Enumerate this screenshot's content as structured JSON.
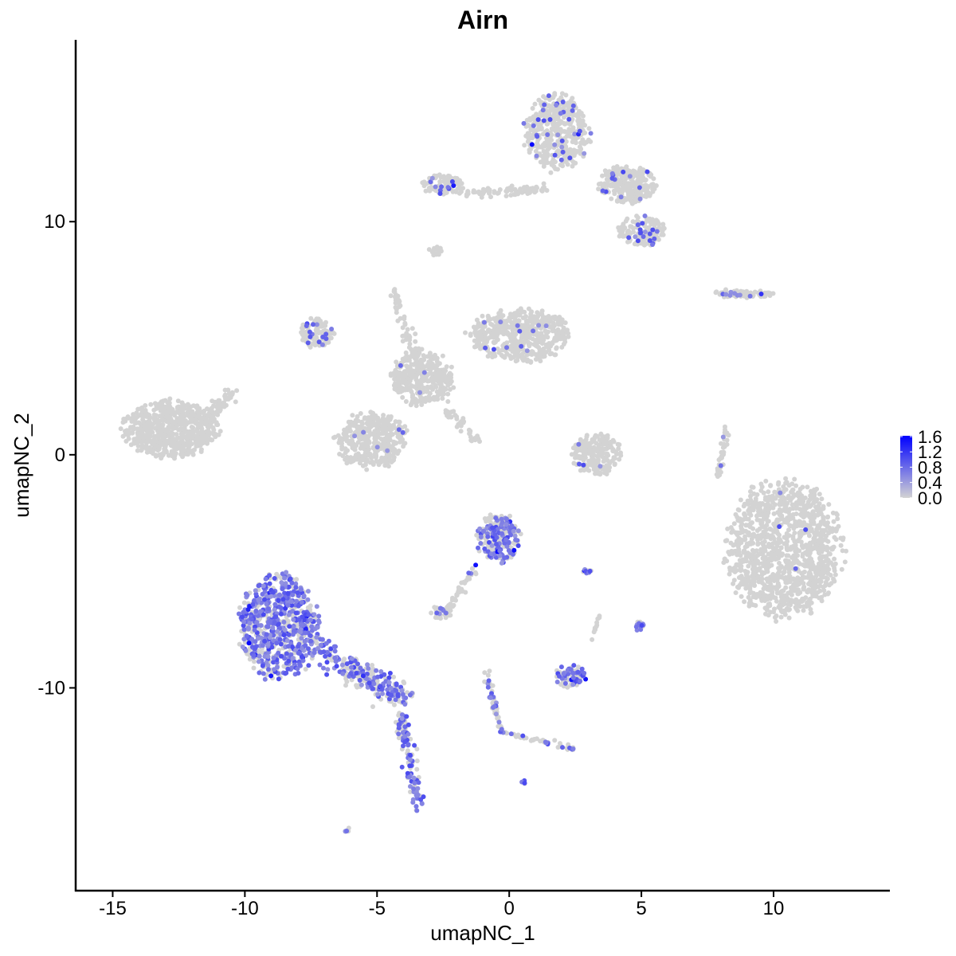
{
  "chart_data": {
    "type": "scatter",
    "title": "Airn",
    "xlabel": "umapNC_1",
    "ylabel": "umapNC_2",
    "xlim": [
      -16.4,
      14.4
    ],
    "ylim": [
      -18.7,
      17.8
    ],
    "xticks": [
      -15,
      -10,
      -5,
      0,
      5,
      10
    ],
    "yticks": [
      -10,
      0,
      10
    ],
    "grid": false,
    "legend": {
      "placement": "right",
      "type": "colorbar",
      "range": [
        0.0,
        1.6
      ],
      "ticks": [
        "1.6",
        "1.2",
        "0.8",
        "0.4",
        "0.0"
      ],
      "low_color": "#d3d3d3",
      "high_color": "#0000ff"
    },
    "clusters": [
      {
        "shape": "blob",
        "center": [
          -12.8,
          1.1
        ],
        "spread": [
          1.95,
          1.35
        ],
        "n": 650,
        "expressed_fraction": 0.0
      },
      {
        "shape": "segment",
        "from": [
          -11.5,
          1.3
        ],
        "to": [
          -10.5,
          2.8
        ],
        "width": 0.3,
        "n": 60,
        "expressed_fraction": 0.0
      },
      {
        "shape": "blob",
        "center": [
          10.4,
          -4.1
        ],
        "spread": [
          2.4,
          3.2
        ],
        "n": 1200,
        "expressed_fraction": 0.004
      },
      {
        "shape": "blob",
        "center": [
          -8.7,
          -7.4
        ],
        "spread": [
          1.65,
          2.5
        ],
        "n": 700,
        "expressed_fraction": 0.6
      },
      {
        "shape": "segment",
        "from": [
          -7.3,
          -8.3
        ],
        "to": [
          -3.9,
          -10.5
        ],
        "width": 0.55,
        "n": 260,
        "expressed_fraction": 0.45
      },
      {
        "shape": "segment",
        "from": [
          -4.1,
          -11.2
        ],
        "to": [
          -3.4,
          -15.2
        ],
        "width": 0.25,
        "n": 120,
        "expressed_fraction": 0.5
      },
      {
        "shape": "blob",
        "center": [
          0.4,
          5.1
        ],
        "spread": [
          2.1,
          1.3
        ],
        "n": 500,
        "expressed_fraction": 0.02
      },
      {
        "shape": "blob",
        "center": [
          -5.2,
          0.6
        ],
        "spread": [
          1.5,
          1.3
        ],
        "n": 380,
        "expressed_fraction": 0.02
      },
      {
        "shape": "blob",
        "center": [
          -7.3,
          5.2
        ],
        "spread": [
          0.7,
          0.7
        ],
        "n": 120,
        "expressed_fraction": 0.15
      },
      {
        "shape": "blob",
        "center": [
          -3.3,
          3.3
        ],
        "spread": [
          1.3,
          1.3
        ],
        "n": 350,
        "expressed_fraction": 0.01
      },
      {
        "shape": "segment",
        "from": [
          -4.4,
          7.0
        ],
        "to": [
          -3.4,
          3.8
        ],
        "width": 0.2,
        "n": 60,
        "expressed_fraction": 0.0
      },
      {
        "shape": "segment",
        "from": [
          -2.5,
          2.0
        ],
        "to": [
          -1.2,
          0.6
        ],
        "width": 0.2,
        "n": 40,
        "expressed_fraction": 0.0
      },
      {
        "shape": "blob",
        "center": [
          1.8,
          13.8
        ],
        "spread": [
          1.35,
          1.8
        ],
        "n": 420,
        "expressed_fraction": 0.08
      },
      {
        "shape": "blob",
        "center": [
          4.5,
          11.6
        ],
        "spread": [
          1.2,
          0.9
        ],
        "n": 260,
        "expressed_fraction": 0.05
      },
      {
        "shape": "blob",
        "center": [
          5.0,
          9.6
        ],
        "spread": [
          1.0,
          0.7
        ],
        "n": 150,
        "expressed_fraction": 0.08
      },
      {
        "shape": "blob",
        "center": [
          -2.5,
          11.6
        ],
        "spread": [
          0.9,
          0.45
        ],
        "n": 90,
        "expressed_fraction": 0.12
      },
      {
        "shape": "segment",
        "from": [
          -1.8,
          11.2
        ],
        "to": [
          1.3,
          11.4
        ],
        "width": 0.2,
        "n": 80,
        "expressed_fraction": 0.0
      },
      {
        "shape": "blob",
        "center": [
          -2.8,
          8.7
        ],
        "spread": [
          0.3,
          0.25
        ],
        "n": 20,
        "expressed_fraction": 0.0
      },
      {
        "shape": "segment",
        "from": [
          7.9,
          6.9
        ],
        "to": [
          10.0,
          6.9
        ],
        "width": 0.15,
        "n": 80,
        "expressed_fraction": 0.1
      },
      {
        "shape": "blob",
        "center": [
          3.3,
          0.0
        ],
        "spread": [
          1.05,
          1.0
        ],
        "n": 200,
        "expressed_fraction": 0.02
      },
      {
        "shape": "segment",
        "from": [
          8.2,
          1.1
        ],
        "to": [
          7.9,
          -1.0
        ],
        "width": 0.12,
        "n": 40,
        "expressed_fraction": 0.1
      },
      {
        "shape": "blob",
        "center": [
          -0.4,
          -3.6
        ],
        "spread": [
          0.9,
          1.2
        ],
        "n": 220,
        "expressed_fraction": 0.35
      },
      {
        "shape": "segment",
        "from": [
          -1.2,
          -4.7
        ],
        "to": [
          -2.4,
          -6.8
        ],
        "width": 0.15,
        "n": 40,
        "expressed_fraction": 0.1
      },
      {
        "shape": "blob",
        "center": [
          -2.6,
          -6.8
        ],
        "spread": [
          0.45,
          0.3
        ],
        "n": 40,
        "expressed_fraction": 0.1
      },
      {
        "shape": "blob",
        "center": [
          2.3,
          -9.5
        ],
        "spread": [
          0.65,
          0.5
        ],
        "n": 90,
        "expressed_fraction": 0.35
      },
      {
        "shape": "segment",
        "from": [
          -0.9,
          -9.3
        ],
        "to": [
          -0.3,
          -11.9
        ],
        "width": 0.12,
        "n": 50,
        "expressed_fraction": 0.3
      },
      {
        "shape": "segment",
        "from": [
          -0.3,
          -11.9
        ],
        "to": [
          2.4,
          -12.6
        ],
        "width": 0.12,
        "n": 50,
        "expressed_fraction": 0.3
      },
      {
        "shape": "blob",
        "center": [
          4.9,
          -7.3
        ],
        "spread": [
          0.2,
          0.25
        ],
        "n": 20,
        "expressed_fraction": 0.4
      },
      {
        "shape": "blob",
        "center": [
          2.9,
          -5.0
        ],
        "spread": [
          0.25,
          0.1
        ],
        "n": 12,
        "expressed_fraction": 0.5
      },
      {
        "shape": "segment",
        "from": [
          3.4,
          -6.8
        ],
        "to": [
          3.1,
          -8.0
        ],
        "width": 0.1,
        "n": 12,
        "expressed_fraction": 0.0
      },
      {
        "shape": "blob",
        "center": [
          -6.1,
          -16.1
        ],
        "spread": [
          0.15,
          0.1
        ],
        "n": 6,
        "expressed_fraction": 0.8
      },
      {
        "shape": "blob",
        "center": [
          0.55,
          -14.05
        ],
        "spread": [
          0.1,
          0.1
        ],
        "n": 4,
        "expressed_fraction": 0.5
      }
    ]
  }
}
